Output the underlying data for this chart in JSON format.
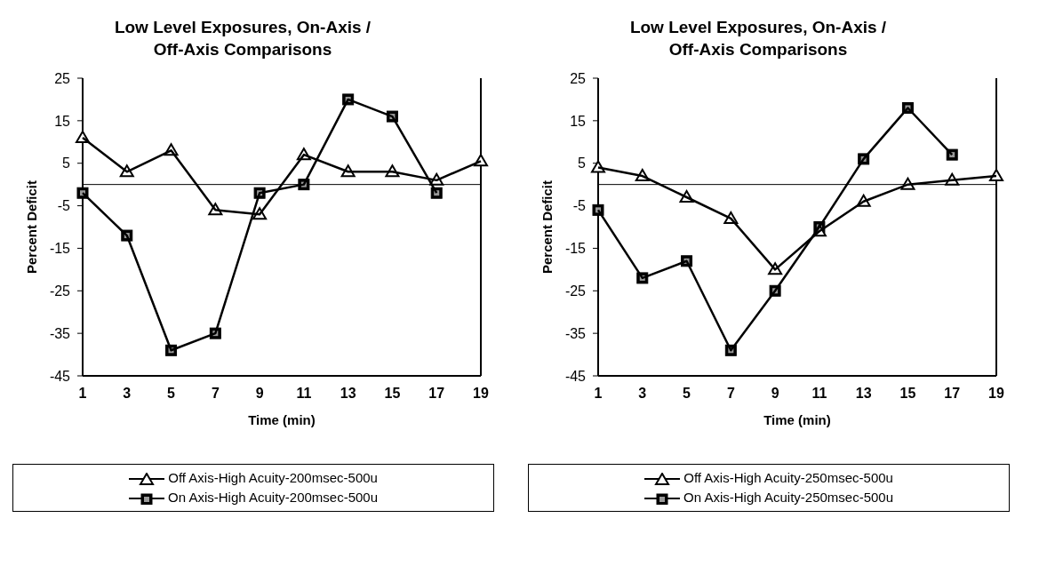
{
  "chart_data": [
    {
      "type": "line",
      "title": "Low Level Exposures, On-Axis / Off-Axis Comparisons",
      "xlabel": "Time (min)",
      "ylabel": "Percent Deficit",
      "x": [
        1,
        3,
        5,
        7,
        9,
        11,
        13,
        15,
        17,
        19
      ],
      "xlim": [
        1,
        19
      ],
      "xticks": [
        1,
        3,
        5,
        7,
        9,
        11,
        13,
        15,
        17,
        19
      ],
      "ylim": [
        -45,
        25
      ],
      "yticks": [
        -45,
        -35,
        -25,
        -15,
        -5,
        5,
        15,
        25
      ],
      "grid": false,
      "legend": "bottom",
      "ref_lines": [
        {
          "axis": "y",
          "value": 0,
          "label": null
        }
      ],
      "series": [
        {
          "name": "Off Axis-High Acuity-200msec-500u",
          "color": "#000000",
          "marker": "triangle",
          "values": [
            11,
            3,
            8,
            -6,
            -7,
            7,
            3,
            3,
            1,
            5.5
          ]
        },
        {
          "name": "On Axis-High Acuity-200msec-500u",
          "color": "#000000",
          "marker": "square",
          "values": [
            -2,
            -12,
            -39,
            -35,
            -2,
            0,
            20,
            16,
            -2,
            null
          ]
        }
      ]
    },
    {
      "type": "line",
      "title": "Low Level Exposures, On-Axis / Off-Axis Comparisons",
      "xlabel": "Time (min)",
      "ylabel": "Percent Deficit",
      "x": [
        1,
        3,
        5,
        7,
        9,
        11,
        13,
        15,
        17,
        19
      ],
      "xlim": [
        1,
        19
      ],
      "xticks": [
        1,
        3,
        5,
        7,
        9,
        11,
        13,
        15,
        17,
        19
      ],
      "ylim": [
        -45,
        25
      ],
      "yticks": [
        -45,
        -35,
        -25,
        -15,
        -5,
        5,
        15,
        25
      ],
      "grid": false,
      "legend": "bottom",
      "ref_lines": [
        {
          "axis": "y",
          "value": 0,
          "label": null
        }
      ],
      "series": [
        {
          "name": "Off Axis-High Acuity-250msec-500u",
          "color": "#000000",
          "marker": "triangle",
          "values": [
            4,
            2,
            -3,
            -8,
            -20,
            -11,
            -4,
            0,
            1,
            2
          ]
        },
        {
          "name": "On Axis-High Acuity-250msec-500u",
          "color": "#000000",
          "marker": "square",
          "values": [
            -6,
            -22,
            -18,
            -39,
            -25,
            -10,
            6,
            18,
            7,
            null
          ]
        }
      ]
    }
  ]
}
